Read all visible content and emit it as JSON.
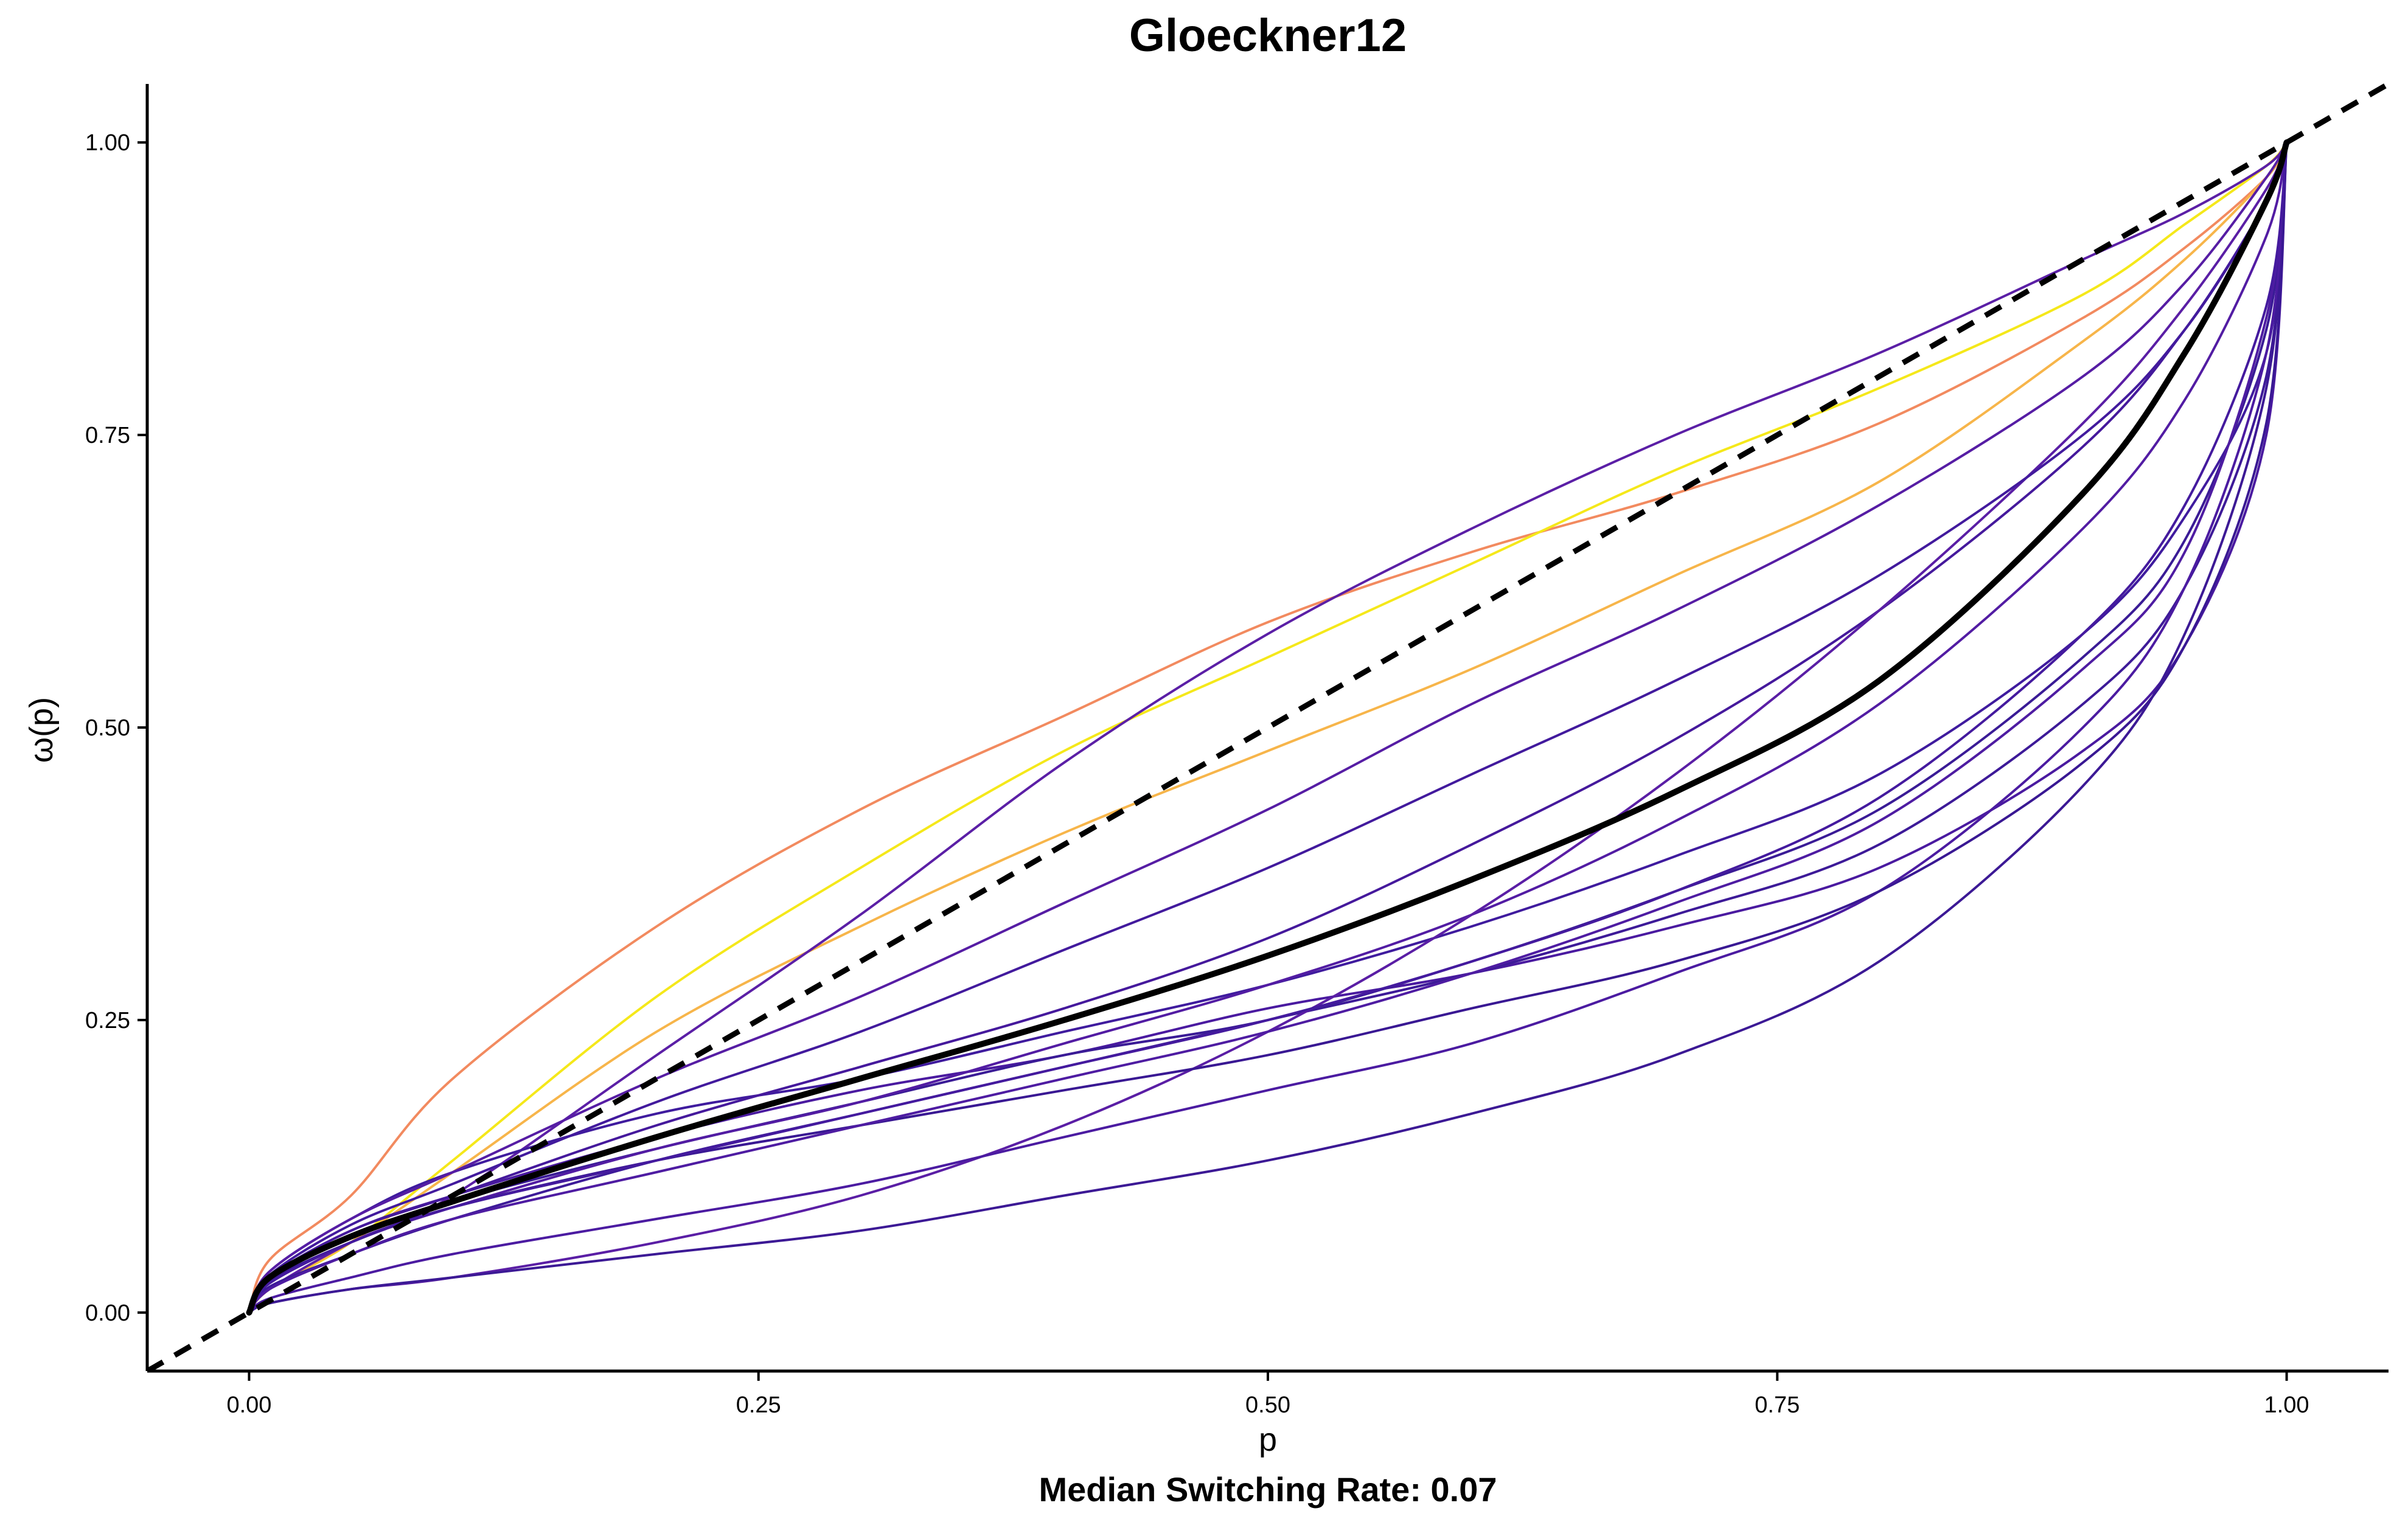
{
  "chart_data": {
    "type": "line",
    "title": "Gloeckner12",
    "caption": "Median Switching Rate: 0.07",
    "xlabel": "p",
    "ylabel": "ω(p)",
    "xlim": [
      -0.05,
      1.05
    ],
    "ylim": [
      -0.05,
      1.05
    ],
    "xticks": [
      0,
      0.25,
      0.5,
      0.75,
      1
    ],
    "xtick_labels": [
      "0.00",
      "0.25",
      "0.50",
      "0.75",
      "1.00"
    ],
    "yticks": [
      0,
      0.25,
      0.5,
      0.75,
      1
    ],
    "ytick_labels": [
      "0.00",
      "0.25",
      "0.50",
      "0.75",
      "1.00"
    ],
    "grid": false,
    "legend": "none",
    "x": [
      0,
      0.01,
      0.05,
      0.1,
      0.2,
      0.3,
      0.4,
      0.5,
      0.6,
      0.7,
      0.8,
      0.9,
      0.95,
      0.99,
      1
    ],
    "reference_line": {
      "style": "dashed",
      "color": "#000000",
      "intercept": 0,
      "slope": 1
    },
    "series": [
      {
        "color": "#000000",
        "role": "median",
        "values": [
          0,
          0.03,
          0.065,
          0.095,
          0.15,
          0.2,
          0.25,
          0.305,
          0.37,
          0.445,
          0.54,
          0.7,
          0.82,
          0.95,
          1
        ]
      },
      {
        "color": "#F28A5F",
        "values": [
          0,
          0.045,
          0.1,
          0.2,
          0.33,
          0.43,
          0.51,
          0.59,
          0.65,
          0.7,
          0.76,
          0.85,
          0.91,
          0.97,
          1
        ]
      },
      {
        "color": "#F5E81A",
        "values": [
          0,
          0.02,
          0.06,
          0.13,
          0.27,
          0.38,
          0.48,
          0.56,
          0.64,
          0.72,
          0.79,
          0.87,
          0.93,
          0.98,
          1
        ]
      },
      {
        "color": "#F7B54A",
        "values": [
          0,
          0.02,
          0.06,
          0.12,
          0.24,
          0.33,
          0.41,
          0.48,
          0.55,
          0.63,
          0.71,
          0.83,
          0.9,
          0.97,
          1
        ]
      },
      {
        "color": "#5B1FA6",
        "values": [
          0,
          0.02,
          0.06,
          0.1,
          0.22,
          0.34,
          0.47,
          0.58,
          0.67,
          0.75,
          0.82,
          0.9,
          0.94,
          0.98,
          1
        ]
      },
      {
        "color": "#3F1B9E",
        "values": [
          0,
          0.035,
          0.08,
          0.12,
          0.17,
          0.2,
          0.24,
          0.28,
          0.33,
          0.39,
          0.46,
          0.58,
          0.68,
          0.82,
          1
        ]
      },
      {
        "color": "#4A1AA0",
        "values": [
          0,
          0.03,
          0.07,
          0.1,
          0.15,
          0.19,
          0.22,
          0.26,
          0.29,
          0.33,
          0.38,
          0.48,
          0.57,
          0.75,
          1
        ]
      },
      {
        "color": "#3A1B96",
        "values": [
          0,
          0.028,
          0.065,
          0.095,
          0.14,
          0.18,
          0.22,
          0.25,
          0.3,
          0.36,
          0.43,
          0.56,
          0.66,
          0.84,
          1
        ]
      },
      {
        "color": "#521CA3",
        "values": [
          0,
          0.025,
          0.06,
          0.09,
          0.14,
          0.18,
          0.23,
          0.28,
          0.34,
          0.42,
          0.52,
          0.67,
          0.78,
          0.92,
          1
        ]
      },
      {
        "color": "#45199C",
        "values": [
          0,
          0.03,
          0.07,
          0.1,
          0.16,
          0.21,
          0.26,
          0.32,
          0.4,
          0.49,
          0.6,
          0.74,
          0.84,
          0.95,
          1
        ]
      },
      {
        "color": "#3D1A98",
        "values": [
          0,
          0.022,
          0.05,
          0.08,
          0.13,
          0.17,
          0.21,
          0.25,
          0.29,
          0.34,
          0.4,
          0.52,
          0.62,
          0.8,
          1
        ]
      },
      {
        "color": "#5A1EA5",
        "values": [
          0,
          0.008,
          0.02,
          0.03,
          0.06,
          0.1,
          0.16,
          0.24,
          0.34,
          0.46,
          0.6,
          0.76,
          0.86,
          0.96,
          1
        ]
      },
      {
        "color": "#3C1995",
        "values": [
          0,
          0.008,
          0.02,
          0.03,
          0.05,
          0.07,
          0.1,
          0.13,
          0.17,
          0.22,
          0.3,
          0.45,
          0.58,
          0.79,
          1
        ]
      },
      {
        "color": "#4B1BA1",
        "values": [
          0,
          0.012,
          0.03,
          0.05,
          0.08,
          0.11,
          0.15,
          0.19,
          0.23,
          0.29,
          0.36,
          0.5,
          0.62,
          0.82,
          1
        ]
      },
      {
        "color": "#421A9D",
        "values": [
          0,
          0.032,
          0.075,
          0.11,
          0.18,
          0.24,
          0.31,
          0.38,
          0.46,
          0.54,
          0.63,
          0.75,
          0.84,
          0.95,
          1
        ]
      },
      {
        "color": "#561DA4",
        "values": [
          0,
          0.035,
          0.08,
          0.12,
          0.2,
          0.27,
          0.35,
          0.43,
          0.52,
          0.6,
          0.69,
          0.8,
          0.88,
          0.97,
          1
        ]
      },
      {
        "color": "#391893",
        "values": [
          0,
          0.027,
          0.06,
          0.09,
          0.13,
          0.16,
          0.19,
          0.22,
          0.26,
          0.3,
          0.36,
          0.47,
          0.57,
          0.76,
          1
        ]
      },
      {
        "color": "#4E1CA2",
        "values": [
          0,
          0.02,
          0.05,
          0.08,
          0.12,
          0.16,
          0.2,
          0.24,
          0.29,
          0.35,
          0.42,
          0.55,
          0.65,
          0.85,
          1
        ]
      },
      {
        "color": "#441A9E",
        "values": [
          0,
          0.025,
          0.06,
          0.09,
          0.13,
          0.17,
          0.21,
          0.25,
          0.3,
          0.36,
          0.44,
          0.58,
          0.69,
          0.86,
          1
        ]
      }
    ]
  }
}
